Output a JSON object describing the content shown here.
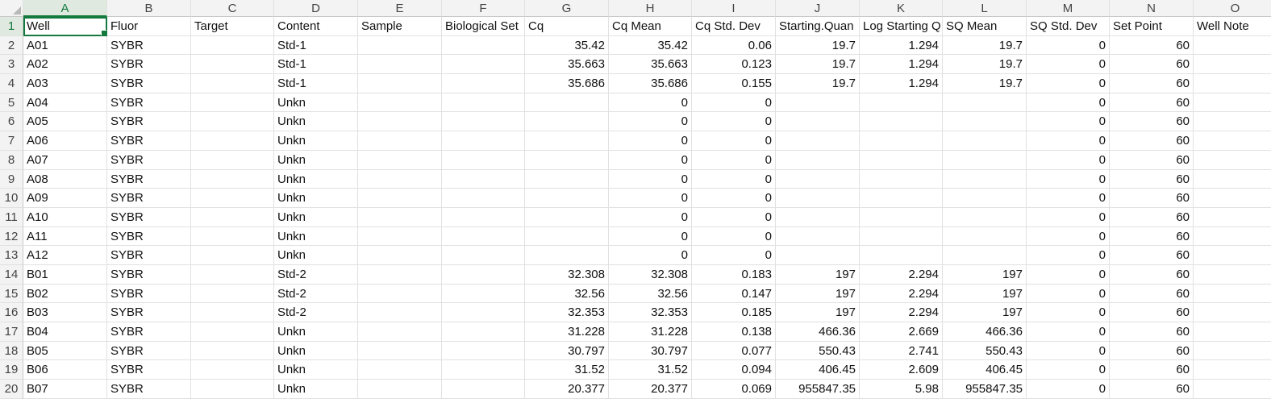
{
  "columns": [
    "A",
    "B",
    "C",
    "D",
    "E",
    "F",
    "G",
    "H",
    "I",
    "J",
    "K",
    "L",
    "M",
    "N",
    "O"
  ],
  "selected": {
    "row": 1,
    "col": "A"
  },
  "numeric_cols": [
    "G",
    "H",
    "I",
    "J",
    "K",
    "L",
    "M",
    "N"
  ],
  "rows": [
    {
      "n": "1",
      "cells": [
        "Well",
        "Fluor",
        "Target",
        "Content",
        "Sample",
        "Biological Set",
        "Cq",
        "Cq Mean",
        "Cq Std. Dev",
        "Starting.Quan",
        "Log Starting Q",
        "SQ Mean",
        "SQ Std. Dev",
        "Set Point",
        "Well Note"
      ]
    },
    {
      "n": "2",
      "cells": [
        "A01",
        "SYBR",
        "",
        "Std-1",
        "",
        "",
        "35.42",
        "35.42",
        "0.06",
        "19.7",
        "1.294",
        "19.7",
        "0",
        "60",
        ""
      ]
    },
    {
      "n": "3",
      "cells": [
        "A02",
        "SYBR",
        "",
        "Std-1",
        "",
        "",
        "35.663",
        "35.663",
        "0.123",
        "19.7",
        "1.294",
        "19.7",
        "0",
        "60",
        ""
      ]
    },
    {
      "n": "4",
      "cells": [
        "A03",
        "SYBR",
        "",
        "Std-1",
        "",
        "",
        "35.686",
        "35.686",
        "0.155",
        "19.7",
        "1.294",
        "19.7",
        "0",
        "60",
        ""
      ]
    },
    {
      "n": "5",
      "cells": [
        "A04",
        "SYBR",
        "",
        "Unkn",
        "",
        "",
        "",
        "0",
        "0",
        "",
        "",
        "",
        "0",
        "60",
        ""
      ]
    },
    {
      "n": "6",
      "cells": [
        "A05",
        "SYBR",
        "",
        "Unkn",
        "",
        "",
        "",
        "0",
        "0",
        "",
        "",
        "",
        "0",
        "60",
        ""
      ]
    },
    {
      "n": "7",
      "cells": [
        "A06",
        "SYBR",
        "",
        "Unkn",
        "",
        "",
        "",
        "0",
        "0",
        "",
        "",
        "",
        "0",
        "60",
        ""
      ]
    },
    {
      "n": "8",
      "cells": [
        "A07",
        "SYBR",
        "",
        "Unkn",
        "",
        "",
        "",
        "0",
        "0",
        "",
        "",
        "",
        "0",
        "60",
        ""
      ]
    },
    {
      "n": "9",
      "cells": [
        "A08",
        "SYBR",
        "",
        "Unkn",
        "",
        "",
        "",
        "0",
        "0",
        "",
        "",
        "",
        "0",
        "60",
        ""
      ]
    },
    {
      "n": "10",
      "cells": [
        "A09",
        "SYBR",
        "",
        "Unkn",
        "",
        "",
        "",
        "0",
        "0",
        "",
        "",
        "",
        "0",
        "60",
        ""
      ]
    },
    {
      "n": "11",
      "cells": [
        "A10",
        "SYBR",
        "",
        "Unkn",
        "",
        "",
        "",
        "0",
        "0",
        "",
        "",
        "",
        "0",
        "60",
        ""
      ]
    },
    {
      "n": "12",
      "cells": [
        "A11",
        "SYBR",
        "",
        "Unkn",
        "",
        "",
        "",
        "0",
        "0",
        "",
        "",
        "",
        "0",
        "60",
        ""
      ]
    },
    {
      "n": "13",
      "cells": [
        "A12",
        "SYBR",
        "",
        "Unkn",
        "",
        "",
        "",
        "0",
        "0",
        "",
        "",
        "",
        "0",
        "60",
        ""
      ]
    },
    {
      "n": "14",
      "cells": [
        "B01",
        "SYBR",
        "",
        "Std-2",
        "",
        "",
        "32.308",
        "32.308",
        "0.183",
        "197",
        "2.294",
        "197",
        "0",
        "60",
        ""
      ]
    },
    {
      "n": "15",
      "cells": [
        "B02",
        "SYBR",
        "",
        "Std-2",
        "",
        "",
        "32.56",
        "32.56",
        "0.147",
        "197",
        "2.294",
        "197",
        "0",
        "60",
        ""
      ]
    },
    {
      "n": "16",
      "cells": [
        "B03",
        "SYBR",
        "",
        "Std-2",
        "",
        "",
        "32.353",
        "32.353",
        "0.185",
        "197",
        "2.294",
        "197",
        "0",
        "60",
        ""
      ]
    },
    {
      "n": "17",
      "cells": [
        "B04",
        "SYBR",
        "",
        "Unkn",
        "",
        "",
        "31.228",
        "31.228",
        "0.138",
        "466.36",
        "2.669",
        "466.36",
        "0",
        "60",
        ""
      ]
    },
    {
      "n": "18",
      "cells": [
        "B05",
        "SYBR",
        "",
        "Unkn",
        "",
        "",
        "30.797",
        "30.797",
        "0.077",
        "550.43",
        "2.741",
        "550.43",
        "0",
        "60",
        ""
      ]
    },
    {
      "n": "19",
      "cells": [
        "B06",
        "SYBR",
        "",
        "Unkn",
        "",
        "",
        "31.52",
        "31.52",
        "0.094",
        "406.45",
        "2.609",
        "406.45",
        "0",
        "60",
        ""
      ]
    },
    {
      "n": "20",
      "cells": [
        "B07",
        "SYBR",
        "",
        "Unkn",
        "",
        "",
        "20.377",
        "20.377",
        "0.069",
        "955847.35",
        "5.98",
        "955847.35",
        "0",
        "60",
        ""
      ]
    }
  ]
}
